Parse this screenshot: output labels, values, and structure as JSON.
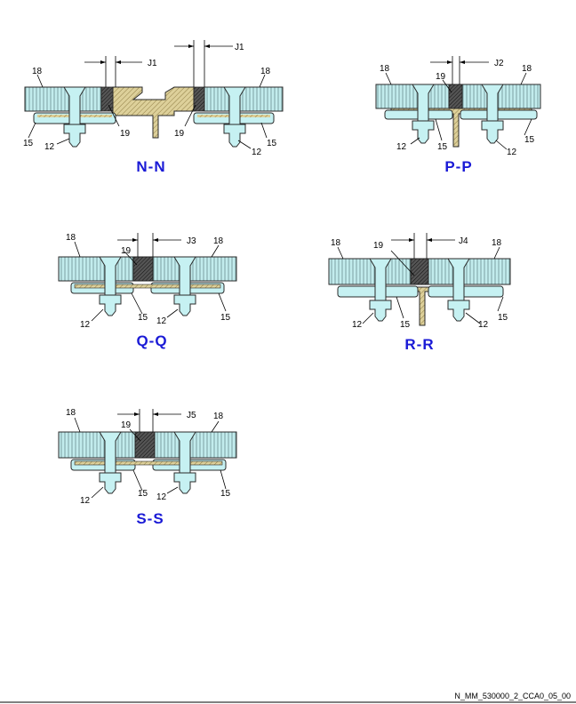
{
  "reference": "N_MM_530000_2_CCA0_05_00",
  "colors": {
    "panel": "#c2eced",
    "hatch": "#6a8e90",
    "fastener": "#c6f1f2",
    "outline": "#2a2a2a",
    "sealant": "#3a3a3a",
    "structure": "#ddd09a",
    "title": "#1a1ad6"
  },
  "sections": [
    {
      "id": "nn",
      "title": "N-N",
      "gap": "J1",
      "gap2": "J1",
      "label_panel": "18",
      "label_seal": "19",
      "label_strap": "15",
      "label_bolt": "12"
    },
    {
      "id": "pp",
      "title": "P-P",
      "gap": "J2",
      "label_panel": "18",
      "label_seal": "19",
      "label_strap": "15",
      "label_bolt": "12"
    },
    {
      "id": "qq",
      "title": "Q-Q",
      "gap": "J3",
      "label_panel": "18",
      "label_seal": "19",
      "label_strap": "15",
      "label_bolt": "12"
    },
    {
      "id": "rr",
      "title": "R-R",
      "gap": "J4",
      "label_panel": "18",
      "label_seal": "19",
      "label_strap": "15",
      "label_bolt": "12"
    },
    {
      "id": "ss",
      "title": "S-S",
      "gap": "J5",
      "label_panel": "18",
      "label_seal": "19",
      "label_strap": "15",
      "label_bolt": "12"
    }
  ]
}
